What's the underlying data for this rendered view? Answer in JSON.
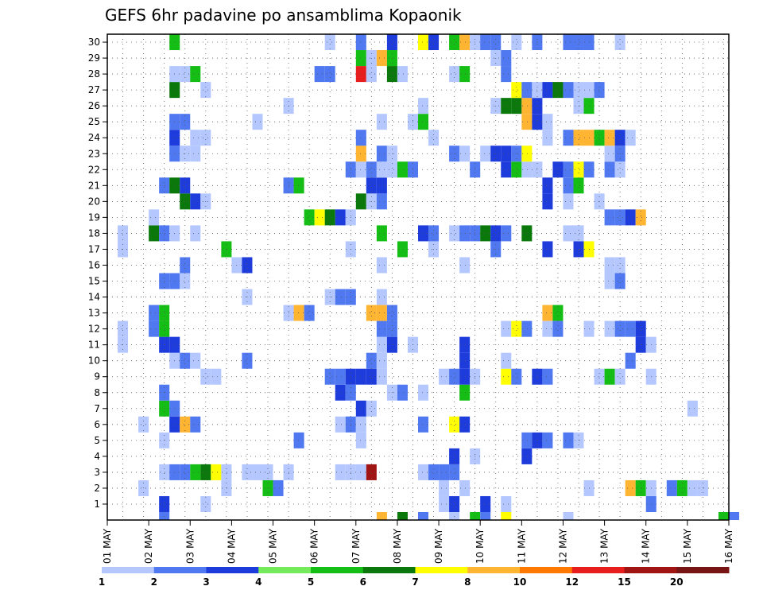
{
  "chart_data": {
    "type": "heatmap",
    "title": "GEFS 6hr padavine po ansamblima Kopaonik",
    "xlabel": "",
    "ylabel": "",
    "x_tick_labels": [
      "01 MAY",
      "02 MAY",
      "03 MAY",
      "04 MAY",
      "05 MAY",
      "06 MAY",
      "07 MAY",
      "08 MAY",
      "09 MAY",
      "10 MAY",
      "11 MAY",
      "12 MAY",
      "13 MAY",
      "14 MAY",
      "15 MAY",
      "16 MAY"
    ],
    "y_tick_labels": [
      1,
      2,
      3,
      4,
      5,
      6,
      7,
      8,
      9,
      10,
      11,
      12,
      13,
      14,
      15,
      16,
      17,
      18,
      19,
      20,
      21,
      22,
      23,
      24,
      25,
      26,
      27,
      28,
      29,
      30
    ],
    "x_range_steps": [
      0,
      60
    ],
    "y_range_members": [
      0,
      30
    ],
    "grid": true,
    "legend_position": "bottom",
    "legend_levels": [
      "1",
      "2",
      "3",
      "4",
      "5",
      "6",
      "7",
      "8",
      "10",
      "12",
      "15",
      "20"
    ],
    "legend_colors": [
      "#b4c8ff",
      "#5078f0",
      "#1e3cdc",
      "#73eb5a",
      "#14be14",
      "#0a780a",
      "#ffff00",
      "#ffb432",
      "#ff7800",
      "#e61e1e",
      "#a01414",
      "#781414"
    ],
    "cells_note": "each cell: [time_step (6h from 01 MAY 00z), member, class index into legend_colors]",
    "cells": [
      [
        5,
        1,
        2
      ],
      [
        9,
        1,
        0
      ],
      [
        32,
        1,
        0
      ],
      [
        33,
        1,
        2
      ],
      [
        36,
        1,
        2
      ],
      [
        38,
        1,
        0
      ],
      [
        52,
        1,
        1
      ],
      [
        3,
        2,
        0
      ],
      [
        11,
        2,
        0
      ],
      [
        15,
        2,
        4
      ],
      [
        16,
        2,
        1
      ],
      [
        32,
        2,
        0
      ],
      [
        34,
        2,
        0
      ],
      [
        46,
        2,
        0
      ],
      [
        50,
        2,
        7
      ],
      [
        51,
        2,
        4
      ],
      [
        52,
        2,
        0
      ],
      [
        54,
        2,
        1
      ],
      [
        55,
        2,
        4
      ],
      [
        56,
        2,
        0
      ],
      [
        57,
        2,
        0
      ],
      [
        5,
        3,
        0
      ],
      [
        6,
        3,
        1
      ],
      [
        7,
        3,
        1
      ],
      [
        8,
        3,
        4
      ],
      [
        9,
        3,
        5
      ],
      [
        10,
        3,
        6
      ],
      [
        11,
        3,
        0
      ],
      [
        13,
        3,
        0
      ],
      [
        14,
        3,
        0
      ],
      [
        15,
        3,
        0
      ],
      [
        17,
        3,
        0
      ],
      [
        22,
        3,
        0
      ],
      [
        23,
        3,
        0
      ],
      [
        24,
        3,
        0
      ],
      [
        25,
        3,
        10
      ],
      [
        30,
        3,
        0
      ],
      [
        31,
        3,
        1
      ],
      [
        32,
        3,
        1
      ],
      [
        33,
        3,
        1
      ],
      [
        33,
        4,
        2
      ],
      [
        35,
        4,
        0
      ],
      [
        40,
        4,
        2
      ],
      [
        5,
        5,
        0
      ],
      [
        18,
        5,
        1
      ],
      [
        24,
        5,
        0
      ],
      [
        40,
        5,
        1
      ],
      [
        41,
        5,
        2
      ],
      [
        42,
        5,
        1
      ],
      [
        44,
        5,
        1
      ],
      [
        45,
        5,
        0
      ],
      [
        3,
        6,
        0
      ],
      [
        6,
        6,
        2
      ],
      [
        7,
        6,
        7
      ],
      [
        8,
        6,
        1
      ],
      [
        22,
        6,
        0
      ],
      [
        23,
        6,
        1
      ],
      [
        24,
        6,
        0
      ],
      [
        30,
        6,
        1
      ],
      [
        33,
        6,
        6
      ],
      [
        34,
        6,
        2
      ],
      [
        5,
        7,
        4
      ],
      [
        6,
        7,
        1
      ],
      [
        24,
        7,
        2
      ],
      [
        25,
        7,
        0
      ],
      [
        56,
        7,
        0
      ],
      [
        5,
        8,
        1
      ],
      [
        22,
        8,
        2
      ],
      [
        23,
        8,
        1
      ],
      [
        27,
        8,
        0
      ],
      [
        28,
        8,
        1
      ],
      [
        30,
        8,
        0
      ],
      [
        34,
        8,
        4
      ],
      [
        9,
        9,
        0
      ],
      [
        10,
        9,
        0
      ],
      [
        21,
        9,
        1
      ],
      [
        22,
        9,
        1
      ],
      [
        23,
        9,
        2
      ],
      [
        24,
        9,
        2
      ],
      [
        25,
        9,
        2
      ],
      [
        26,
        9,
        0
      ],
      [
        32,
        9,
        0
      ],
      [
        33,
        9,
        1
      ],
      [
        34,
        9,
        2
      ],
      [
        35,
        9,
        0
      ],
      [
        38,
        9,
        6
      ],
      [
        39,
        9,
        1
      ],
      [
        41,
        9,
        2
      ],
      [
        42,
        9,
        1
      ],
      [
        47,
        9,
        0
      ],
      [
        48,
        9,
        4
      ],
      [
        49,
        9,
        0
      ],
      [
        52,
        9,
        0
      ],
      [
        6,
        10,
        0
      ],
      [
        7,
        10,
        1
      ],
      [
        8,
        10,
        0
      ],
      [
        13,
        10,
        1
      ],
      [
        25,
        10,
        1
      ],
      [
        26,
        10,
        0
      ],
      [
        34,
        10,
        2
      ],
      [
        38,
        10,
        0
      ],
      [
        50,
        10,
        1
      ],
      [
        1,
        11,
        0
      ],
      [
        5,
        11,
        2
      ],
      [
        6,
        11,
        2
      ],
      [
        26,
        11,
        0
      ],
      [
        27,
        11,
        2
      ],
      [
        29,
        11,
        0
      ],
      [
        34,
        11,
        2
      ],
      [
        51,
        11,
        2
      ],
      [
        52,
        11,
        0
      ],
      [
        1,
        12,
        0
      ],
      [
        4,
        12,
        1
      ],
      [
        5,
        12,
        4
      ],
      [
        26,
        12,
        1
      ],
      [
        27,
        12,
        1
      ],
      [
        38,
        12,
        0
      ],
      [
        39,
        12,
        6
      ],
      [
        40,
        12,
        1
      ],
      [
        42,
        12,
        0
      ],
      [
        43,
        12,
        1
      ],
      [
        46,
        12,
        0
      ],
      [
        48,
        12,
        0
      ],
      [
        49,
        12,
        1
      ],
      [
        50,
        12,
        1
      ],
      [
        51,
        12,
        2
      ],
      [
        4,
        13,
        1
      ],
      [
        5,
        13,
        4
      ],
      [
        17,
        13,
        0
      ],
      [
        18,
        13,
        7
      ],
      [
        19,
        13,
        1
      ],
      [
        25,
        13,
        7
      ],
      [
        26,
        13,
        7
      ],
      [
        27,
        13,
        1
      ],
      [
        42,
        13,
        7
      ],
      [
        43,
        13,
        4
      ],
      [
        13,
        14,
        0
      ],
      [
        21,
        14,
        0
      ],
      [
        22,
        14,
        1
      ],
      [
        23,
        14,
        1
      ],
      [
        26,
        14,
        0
      ],
      [
        5,
        15,
        1
      ],
      [
        6,
        15,
        1
      ],
      [
        7,
        15,
        0
      ],
      [
        48,
        15,
        0
      ],
      [
        49,
        15,
        1
      ],
      [
        7,
        16,
        1
      ],
      [
        12,
        16,
        0
      ],
      [
        13,
        16,
        2
      ],
      [
        26,
        16,
        0
      ],
      [
        34,
        16,
        0
      ],
      [
        48,
        16,
        0
      ],
      [
        49,
        16,
        0
      ],
      [
        1,
        17,
        0
      ],
      [
        11,
        17,
        4
      ],
      [
        23,
        17,
        0
      ],
      [
        28,
        17,
        4
      ],
      [
        31,
        17,
        0
      ],
      [
        37,
        17,
        1
      ],
      [
        42,
        17,
        2
      ],
      [
        45,
        17,
        2
      ],
      [
        46,
        17,
        6
      ],
      [
        1,
        18,
        0
      ],
      [
        4,
        18,
        5
      ],
      [
        5,
        18,
        1
      ],
      [
        6,
        18,
        0
      ],
      [
        8,
        18,
        0
      ],
      [
        26,
        18,
        4
      ],
      [
        30,
        18,
        2
      ],
      [
        31,
        18,
        1
      ],
      [
        33,
        18,
        0
      ],
      [
        34,
        18,
        1
      ],
      [
        35,
        18,
        1
      ],
      [
        36,
        18,
        5
      ],
      [
        37,
        18,
        2
      ],
      [
        38,
        18,
        1
      ],
      [
        40,
        18,
        5
      ],
      [
        44,
        18,
        0
      ],
      [
        45,
        18,
        0
      ],
      [
        4,
        19,
        0
      ],
      [
        19,
        19,
        4
      ],
      [
        20,
        19,
        6
      ],
      [
        21,
        19,
        5
      ],
      [
        22,
        19,
        2
      ],
      [
        23,
        19,
        0
      ],
      [
        48,
        19,
        1
      ],
      [
        49,
        19,
        1
      ],
      [
        50,
        19,
        2
      ],
      [
        51,
        19,
        7
      ],
      [
        7,
        20,
        5
      ],
      [
        8,
        20,
        2
      ],
      [
        9,
        20,
        0
      ],
      [
        24,
        20,
        5
      ],
      [
        25,
        20,
        0
      ],
      [
        26,
        20,
        1
      ],
      [
        42,
        20,
        2
      ],
      [
        44,
        20,
        0
      ],
      [
        47,
        20,
        0
      ],
      [
        5,
        21,
        1
      ],
      [
        6,
        21,
        5
      ],
      [
        7,
        21,
        2
      ],
      [
        17,
        21,
        1
      ],
      [
        18,
        21,
        4
      ],
      [
        25,
        21,
        2
      ],
      [
        26,
        21,
        2
      ],
      [
        42,
        21,
        2
      ],
      [
        44,
        21,
        1
      ],
      [
        45,
        21,
        4
      ],
      [
        23,
        22,
        1
      ],
      [
        24,
        22,
        0
      ],
      [
        25,
        22,
        1
      ],
      [
        26,
        22,
        0
      ],
      [
        27,
        22,
        0
      ],
      [
        28,
        22,
        4
      ],
      [
        29,
        22,
        1
      ],
      [
        35,
        22,
        1
      ],
      [
        38,
        22,
        2
      ],
      [
        39,
        22,
        4
      ],
      [
        40,
        22,
        0
      ],
      [
        41,
        22,
        0
      ],
      [
        43,
        22,
        2
      ],
      [
        44,
        22,
        1
      ],
      [
        45,
        22,
        6
      ],
      [
        46,
        22,
        1
      ],
      [
        48,
        22,
        1
      ],
      [
        49,
        22,
        0
      ],
      [
        6,
        23,
        1
      ],
      [
        7,
        23,
        0
      ],
      [
        8,
        23,
        0
      ],
      [
        24,
        23,
        7
      ],
      [
        26,
        23,
        1
      ],
      [
        27,
        23,
        0
      ],
      [
        33,
        23,
        1
      ],
      [
        34,
        23,
        0
      ],
      [
        36,
        23,
        0
      ],
      [
        37,
        23,
        2
      ],
      [
        38,
        23,
        2
      ],
      [
        39,
        23,
        1
      ],
      [
        40,
        23,
        6
      ],
      [
        48,
        23,
        0
      ],
      [
        49,
        23,
        1
      ],
      [
        6,
        24,
        2
      ],
      [
        8,
        24,
        0
      ],
      [
        9,
        24,
        0
      ],
      [
        24,
        24,
        1
      ],
      [
        31,
        24,
        0
      ],
      [
        42,
        24,
        0
      ],
      [
        44,
        24,
        1
      ],
      [
        45,
        24,
        7
      ],
      [
        46,
        24,
        7
      ],
      [
        47,
        24,
        4
      ],
      [
        48,
        24,
        7
      ],
      [
        49,
        24,
        2
      ],
      [
        50,
        24,
        0
      ],
      [
        6,
        25,
        1
      ],
      [
        7,
        25,
        1
      ],
      [
        14,
        25,
        0
      ],
      [
        26,
        25,
        0
      ],
      [
        29,
        25,
        0
      ],
      [
        30,
        25,
        4
      ],
      [
        40,
        25,
        7
      ],
      [
        41,
        25,
        2
      ],
      [
        42,
        25,
        0
      ],
      [
        17,
        26,
        0
      ],
      [
        30,
        26,
        0
      ],
      [
        37,
        26,
        0
      ],
      [
        38,
        26,
        5
      ],
      [
        39,
        26,
        5
      ],
      [
        40,
        26,
        7
      ],
      [
        41,
        26,
        2
      ],
      [
        45,
        26,
        0
      ],
      [
        46,
        26,
        4
      ],
      [
        6,
        27,
        5
      ],
      [
        9,
        27,
        0
      ],
      [
        39,
        27,
        6
      ],
      [
        40,
        27,
        1
      ],
      [
        41,
        27,
        0
      ],
      [
        42,
        27,
        2
      ],
      [
        43,
        27,
        5
      ],
      [
        44,
        27,
        1
      ],
      [
        45,
        27,
        0
      ],
      [
        46,
        27,
        0
      ],
      [
        47,
        27,
        1
      ],
      [
        6,
        28,
        0
      ],
      [
        7,
        28,
        0
      ],
      [
        8,
        28,
        4
      ],
      [
        20,
        28,
        1
      ],
      [
        21,
        28,
        1
      ],
      [
        24,
        28,
        9
      ],
      [
        25,
        28,
        0
      ],
      [
        27,
        28,
        5
      ],
      [
        28,
        28,
        0
      ],
      [
        33,
        28,
        0
      ],
      [
        34,
        28,
        4
      ],
      [
        38,
        28,
        1
      ],
      [
        24,
        29,
        4
      ],
      [
        25,
        29,
        0
      ],
      [
        26,
        29,
        7
      ],
      [
        27,
        29,
        4
      ],
      [
        37,
        29,
        0
      ],
      [
        38,
        29,
        1
      ],
      [
        6,
        30,
        4
      ],
      [
        21,
        30,
        0
      ],
      [
        24,
        30,
        1
      ],
      [
        27,
        30,
        2
      ],
      [
        30,
        30,
        6
      ],
      [
        31,
        30,
        2
      ],
      [
        33,
        30,
        4
      ],
      [
        34,
        30,
        7
      ],
      [
        35,
        30,
        0
      ],
      [
        36,
        30,
        1
      ],
      [
        37,
        30,
        1
      ],
      [
        39,
        30,
        0
      ],
      [
        41,
        30,
        1
      ],
      [
        44,
        30,
        1
      ],
      [
        45,
        30,
        1
      ],
      [
        46,
        30,
        1
      ],
      [
        49,
        30,
        0
      ]
    ],
    "bottom_row_cells": [
      [
        5,
        1
      ],
      [
        26,
        7
      ],
      [
        28,
        5
      ],
      [
        30,
        1
      ],
      [
        33,
        0
      ],
      [
        35,
        4
      ],
      [
        36,
        1
      ],
      [
        38,
        6
      ],
      [
        44,
        0
      ],
      [
        59,
        4
      ],
      [
        60,
        1
      ]
    ]
  }
}
